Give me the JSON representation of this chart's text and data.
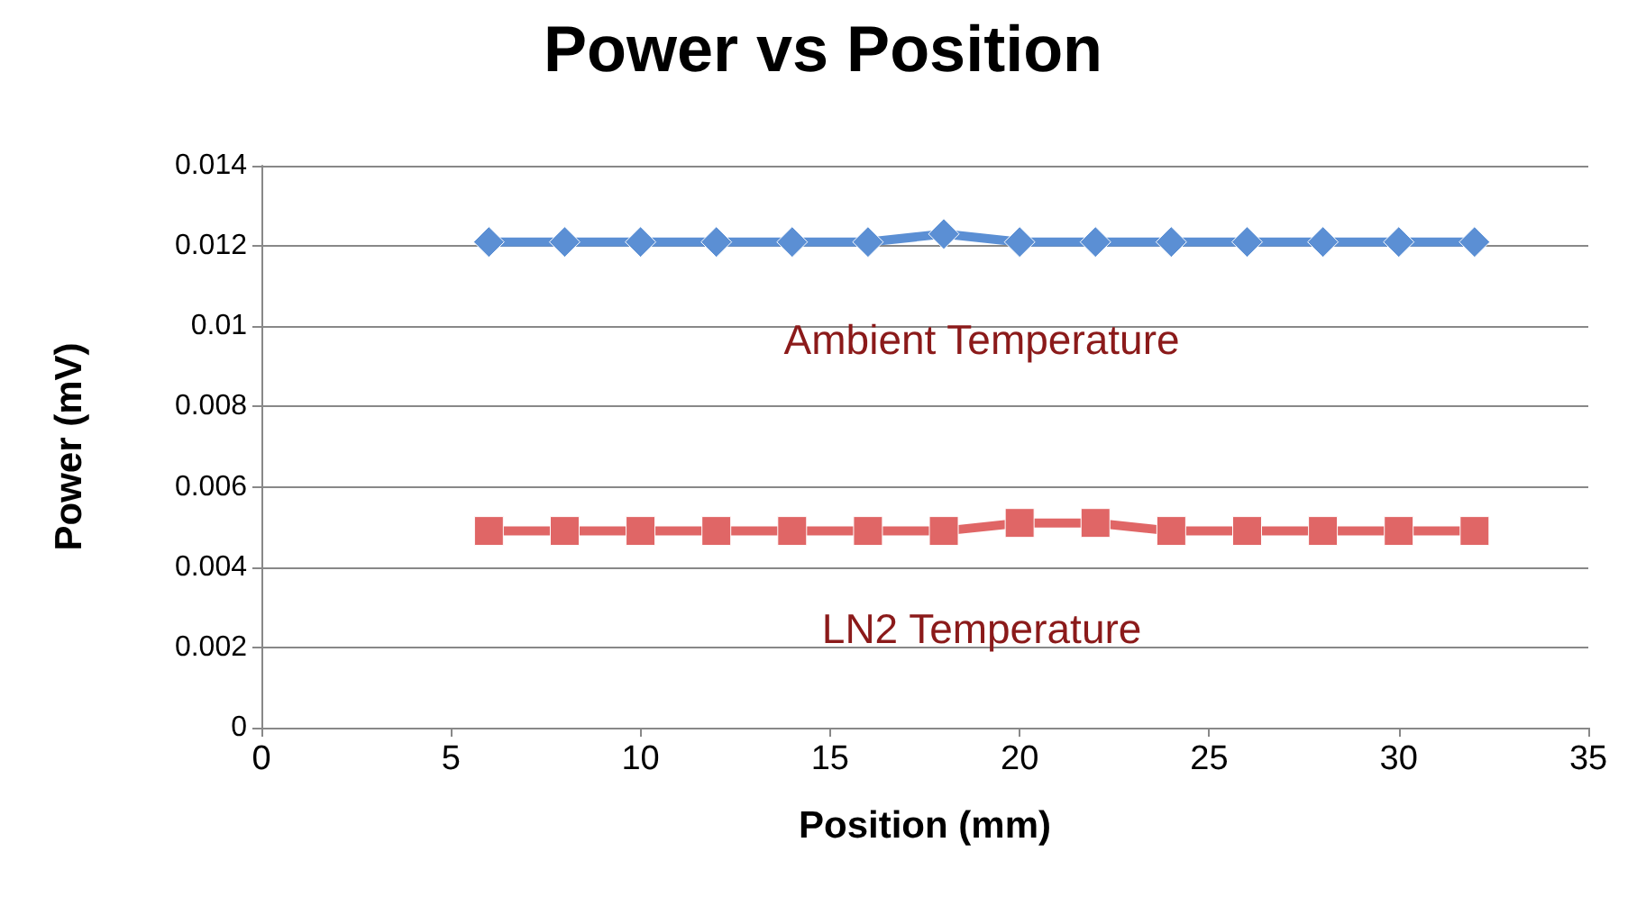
{
  "chart_data": {
    "type": "line",
    "title": "Power vs Position",
    "xlabel": "Position (mm)",
    "ylabel": "Power (mV)",
    "x": [
      6,
      8,
      10,
      12,
      14,
      16,
      18,
      20,
      22,
      24,
      26,
      28,
      30,
      32
    ],
    "series": [
      {
        "name": "Ambient Temperature",
        "color": "#5b8fd4",
        "marker": "diamond",
        "values": [
          0.0121,
          0.0121,
          0.0121,
          0.0121,
          0.0121,
          0.0121,
          0.0123,
          0.0121,
          0.0121,
          0.0121,
          0.0121,
          0.0121,
          0.0121,
          0.0121
        ]
      },
      {
        "name": "LN2 Temperature",
        "color": "#e06666",
        "marker": "square",
        "values": [
          0.0049,
          0.0049,
          0.0049,
          0.0049,
          0.0049,
          0.0049,
          0.0049,
          0.0051,
          0.0051,
          0.0049,
          0.0049,
          0.0049,
          0.0049,
          0.0049
        ]
      }
    ],
    "xlim": [
      0,
      35
    ],
    "xticks": [
      0,
      5,
      10,
      15,
      20,
      25,
      30,
      35
    ],
    "ylim": [
      0,
      0.014
    ],
    "yticks": [
      0,
      0.002,
      0.004,
      0.006,
      0.008,
      0.01,
      0.012,
      0.014
    ],
    "grid": "y",
    "legend": false
  }
}
